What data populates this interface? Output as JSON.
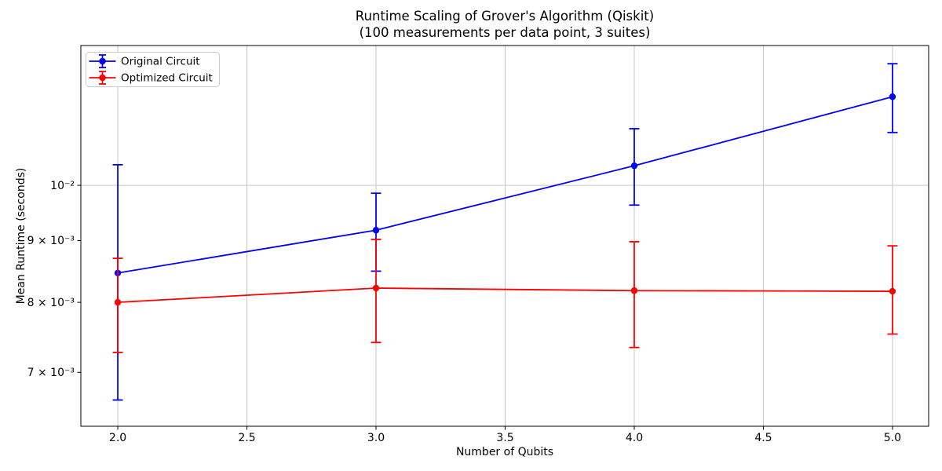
{
  "chart_data": {
    "type": "line",
    "title_line1": "Runtime Scaling of Grover's Algorithm (Qiskit)",
    "title_line2": "(100 measurements per data point, 3 suites)",
    "xlabel": "Number of Qubits",
    "ylabel": "Mean Runtime (seconds)",
    "y_scale": "log",
    "xlim": [
      1.857,
      5.14
    ],
    "ylim": [
      0.006316,
      0.013055
    ],
    "x_ticks": [
      {
        "value": 2.0,
        "label": "2.0"
      },
      {
        "value": 2.5,
        "label": "2.5"
      },
      {
        "value": 3.0,
        "label": "3.0"
      },
      {
        "value": 3.5,
        "label": "3.5"
      },
      {
        "value": 4.0,
        "label": "4.0"
      },
      {
        "value": 4.5,
        "label": "4.5"
      },
      {
        "value": 5.0,
        "label": "5.0"
      }
    ],
    "y_ticks": [
      {
        "value": 0.01,
        "label": "10⁻²"
      },
      {
        "value": 0.009,
        "label": "9 × 10⁻³"
      },
      {
        "value": 0.008,
        "label": "8 × 10⁻³"
      },
      {
        "value": 0.007,
        "label": "7 × 10⁻³"
      }
    ],
    "grid": {
      "on": true,
      "color": "#c6c6c6",
      "x_values": [
        2.0,
        2.5,
        3.0,
        3.5,
        4.0,
        4.5,
        5.0
      ],
      "y_values": [
        0.01
      ]
    },
    "series": [
      {
        "name": "Original Circuit",
        "color": "#0000ff",
        "x": [
          2,
          3,
          4,
          5
        ],
        "mean": [
          0.00846,
          0.00918,
          0.01038,
          0.01184
        ],
        "upper": [
          0.0104,
          0.00985,
          0.01114,
          0.01261
        ],
        "lower": [
          0.00664,
          0.00849,
          0.00963,
          0.01106
        ]
      },
      {
        "name": "Optimized Circuit",
        "color": "#ff0000",
        "x": [
          2,
          3,
          4,
          5
        ],
        "mean": [
          0.008,
          0.00822,
          0.00818,
          0.00817
        ],
        "upper": [
          0.0087,
          0.00902,
          0.00898,
          0.00891
        ],
        "lower": [
          0.00727,
          0.00741,
          0.00734,
          0.00753
        ]
      }
    ],
    "legend": {
      "position": "upper left"
    }
  }
}
